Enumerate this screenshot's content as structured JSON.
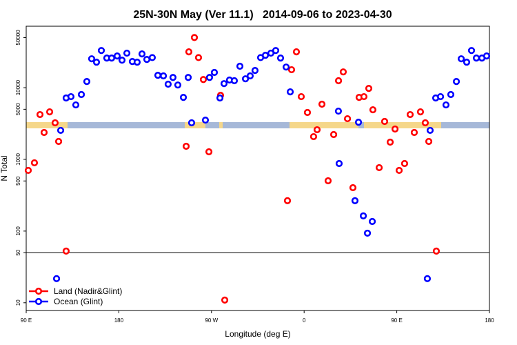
{
  "chart_data": {
    "type": "scatter",
    "title": "25N-30N May (Ver 11.1)   2014-09-06 to 2023-04-30",
    "xlabel": "Longitude (deg E)",
    "ylabel": "N Total",
    "log_y": true,
    "xlim": [
      90,
      540
    ],
    "ylim": [
      7.8,
      72000
    ],
    "xticks": [
      {
        "value": 90,
        "label": "90 E"
      },
      180,
      {
        "value": 270,
        "label": "90 W"
      },
      {
        "value": 360,
        "label": "0"
      },
      {
        "value": 450,
        "label": "90 E"
      },
      {
        "value": 540,
        "label": "180"
      }
    ],
    "yticks": [
      10,
      50,
      100,
      500,
      1000,
      5000,
      10000,
      50000
    ],
    "hline": 50,
    "legend": "bottom-left",
    "series": [
      {
        "name": "Land (Nadir&Glint)",
        "color": "#ff0000",
        "x": [
          92.0,
          98.0,
          103.4,
          107.4,
          112.8,
          118.1,
          121.5,
          128.8,
          245.4,
          248.0,
          253.4,
          257.4,
          262.1,
          267.5,
          278.8,
          282.9,
          343.8,
          347.8,
          352.5,
          357.2,
          363.2,
          369.2,
          372.6,
          377.3,
          383.3,
          388.7,
          393.4,
          398.0,
          402.1,
          407.4,
          413.4,
          418.1,
          422.8,
          426.8,
          432.9,
          438.2,
          443.6,
          448.3,
          452.3,
          457.6,
          463.0,
          467.0,
          473.0,
          477.7,
          481.1,
          488.4
        ],
        "values": [
          702,
          896,
          4217,
          2371,
          4600,
          3236,
          1778,
          52.6,
          1524,
          31600,
          50100,
          26300,
          13000,
          1276,
          7830,
          10.9,
          265,
          17800,
          31600,
          7500,
          4510,
          2075,
          2590,
          5890,
          503,
          2220,
          12500,
          16600,
          3690,
          403,
          7330,
          7500,
          9770,
          4920,
          767,
          3380,
          1740,
          2650,
          702,
          875,
          4217,
          2371,
          4600,
          3236,
          1778,
          52.6
        ]
      },
      {
        "name": "Ocean (Glint)",
        "color": "#0000ff",
        "x": [
          119.5,
          123.5,
          128.8,
          133.5,
          138.2,
          143.6,
          148.9,
          153.6,
          158.3,
          163.0,
          168.3,
          173.0,
          178.4,
          183.1,
          187.8,
          193.1,
          197.8,
          202.5,
          207.2,
          212.5,
          217.9,
          223.3,
          227.9,
          232.6,
          237.3,
          242.7,
          247.4,
          250.7,
          264.1,
          268.1,
          272.8,
          278.2,
          282.2,
          287.5,
          292.2,
          297.6,
          303.0,
          307.6,
          312.3,
          317.7,
          322.4,
          327.7,
          332.4,
          337.1,
          342.5,
          346.5,
          393.3,
          394.0,
          409.4,
          412.8,
          417.5,
          421.5,
          426.2,
          479.7,
          482.4,
          487.8,
          492.5,
          497.8,
          502.5,
          507.9,
          512.6,
          517.9,
          522.6,
          527.3,
          532.7,
          537.3
        ],
        "values": [
          21.7,
          2540,
          7180,
          7500,
          5750,
          8020,
          12200,
          25300,
          22700,
          33000,
          25900,
          25900,
          27700,
          24200,
          30300,
          23200,
          22700,
          29600,
          24800,
          26300,
          14900,
          14600,
          11200,
          13900,
          10900,
          7330,
          13900,
          3236,
          3530,
          13900,
          16300,
          7180,
          11400,
          12800,
          12500,
          19900,
          13300,
          14600,
          17400,
          26300,
          28300,
          30300,
          33000,
          25900,
          19400,
          8750,
          4710,
          875,
          265,
          3300,
          163,
          93.5,
          136,
          21.7,
          2540,
          7180,
          7500,
          5750,
          8020,
          12200,
          25300,
          22700,
          33000,
          25900,
          25900,
          27700
        ]
      }
    ]
  }
}
